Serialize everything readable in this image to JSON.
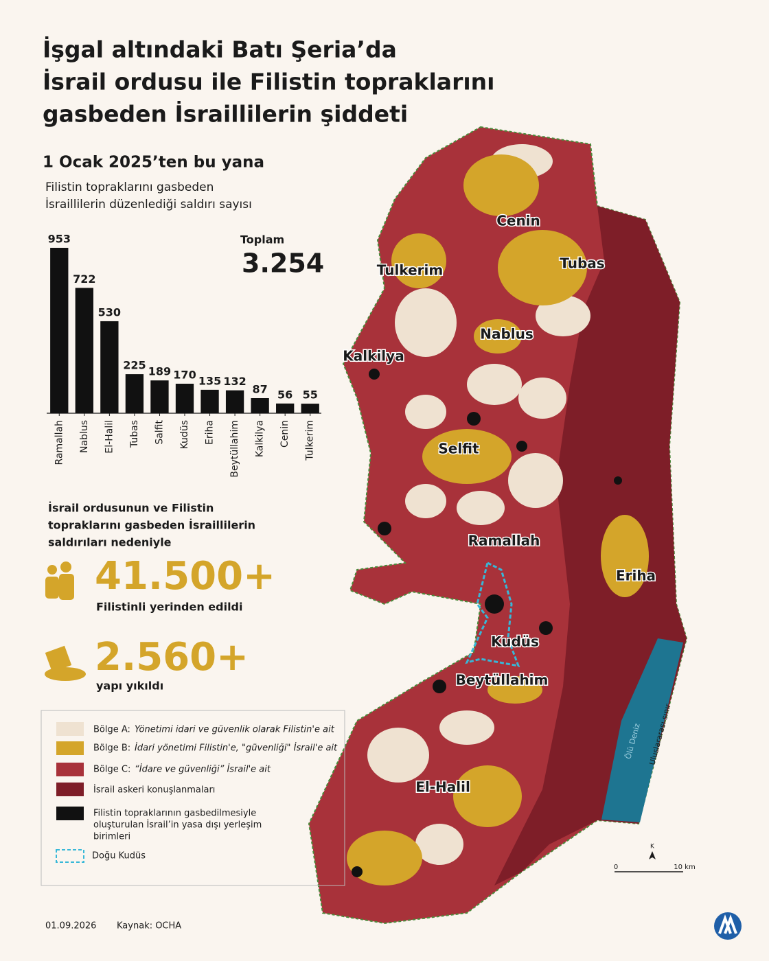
{
  "title": [
    "İşgal altındaki Batı Şeria’da",
    "İsrail ordusu ile Filistin topraklarını",
    "gasbeden İsraillilerin şiddeti"
  ],
  "subtitle": "1 Ocak 2025’ten bu yana",
  "chart_data": {
    "type": "bar",
    "title": [
      "Filistin topraklarını gasbeden",
      "İsraillilerin düzenlediği saldırı sayısı"
    ],
    "categories": [
      "Ramallah",
      "Nablus",
      "El-Halil",
      "Tubas",
      "Salfit",
      "Kudüs",
      "Eriha",
      "Beytüllahim",
      "Kalkilya",
      "Cenin",
      "Tulkerim"
    ],
    "values": [
      953,
      722,
      530,
      225,
      189,
      170,
      135,
      132,
      87,
      56,
      55
    ],
    "color": "#111111"
  },
  "total": {
    "label": "Toplam",
    "value": "3.254"
  },
  "impact": {
    "intro": [
      "İsrail ordusunun ve Filistin",
      "topraklarını gasbeden İsraillilerin",
      "saldırıları nedeniyle"
    ],
    "stats": [
      {
        "value": "41.500+",
        "label": "Filistinli yerinden edildi"
      },
      {
        "value": "2.560+",
        "label": "yapı yıkıldı"
      }
    ]
  },
  "map": {
    "labels": [
      "Cenin",
      "Tubas",
      "Tulkerim",
      "Nablus",
      "Kalkilya",
      "Selfit",
      "Ramallah",
      "Eriha",
      "Kudüs",
      "Beytüllahim",
      "El-Halil"
    ],
    "dead_sea": "Ölü Deniz",
    "border": "Uluslararası sınır",
    "north": "K",
    "scale": [
      "0",
      "10 km"
    ]
  },
  "legend": [
    {
      "name": "Bölge A:",
      "desc": "Yönetimi idari ve güvenlik olarak Filistin'e ait"
    },
    {
      "name": "Bölge B:",
      "desc": "İdari yönetimi Filistin'e, \"güvenliği\" İsrail'e ait"
    },
    {
      "name": "Bölge C:",
      "desc": "“İdare ve güvenliği” İsrail'e ait"
    },
    {
      "name": "İsrail askeri konuşlanmaları"
    },
    {
      "lines": [
        "Filistin topraklarının gasbedilmesiyle",
        "oluşturulan İsrail’in yasa dışı yerleşim",
        "birimleri"
      ]
    },
    {
      "name": "Doğu Kudüs"
    }
  ],
  "footer": {
    "date": "01.09.2026",
    "source": "Kaynak: OCHA"
  }
}
